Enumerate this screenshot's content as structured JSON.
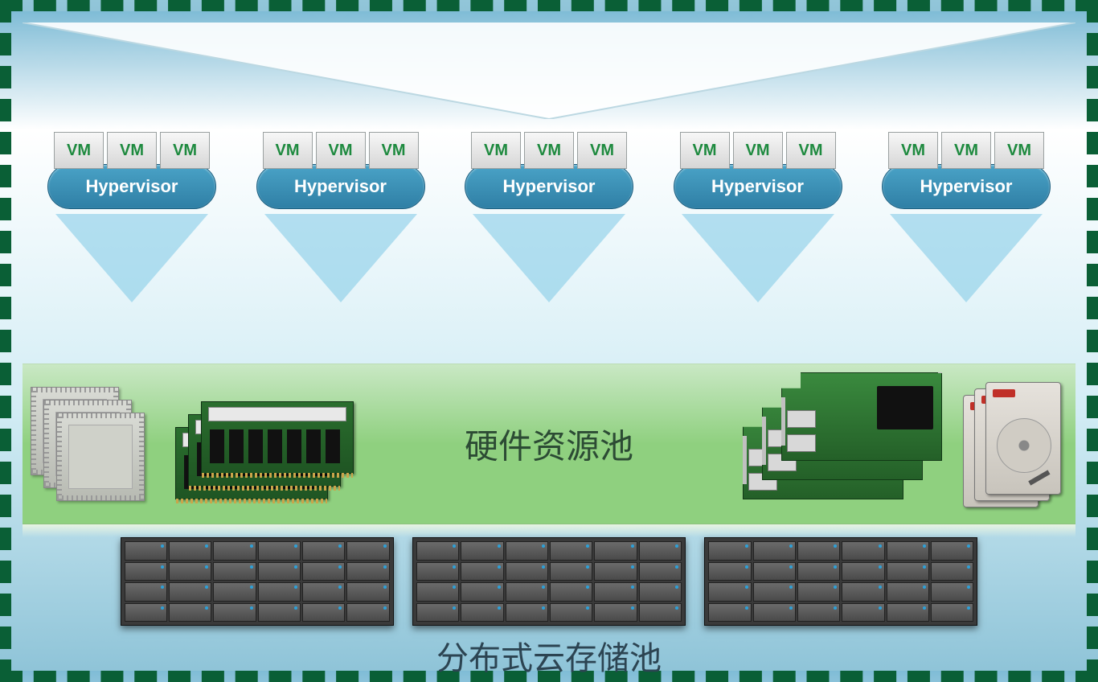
{
  "diagram": {
    "type": "infographic",
    "hypervisor_stacks": {
      "count": 5,
      "vm_label": "VM",
      "vms_per_stack": 3,
      "hypervisor_label": "Hypervisor",
      "vm_text_color": "#1e8a3f",
      "vm_bg_gradient": [
        "#f7f7f7",
        "#d6d6d6"
      ],
      "hypervisor_bg_gradient": [
        "#4aa3c7",
        "#2f7fa5"
      ],
      "hypervisor_text_color": "#ffffff",
      "cone_color": "rgba(125,200,230,.55)"
    },
    "hardware_pool": {
      "label": "硬件资源池",
      "band_gradient": [
        "#c9e8c4",
        "#8fd07f"
      ],
      "label_color": "#2c4b34",
      "label_fontsize": 42,
      "components": {
        "cpu_count": 3,
        "ram_count": 3,
        "nic_count": 3,
        "hdd_count": 3
      }
    },
    "storage_pool": {
      "label": "分布式云存储池",
      "label_color": "#2c4452",
      "label_fontsize": 40,
      "servers": 3,
      "bays_per_server": 24,
      "bay_columns": 6,
      "bay_rows": 4,
      "chassis_color": "#3a3a3a",
      "bay_gradient": [
        "#6b6b6b",
        "#4a4a4a"
      ],
      "led_color": "#2da0d8"
    },
    "frame_border_color": "#0a5f36",
    "background_gradient": [
      "#7fbcd6",
      "#ffffff",
      "#d3edf5",
      "#8fc4d8"
    ]
  }
}
